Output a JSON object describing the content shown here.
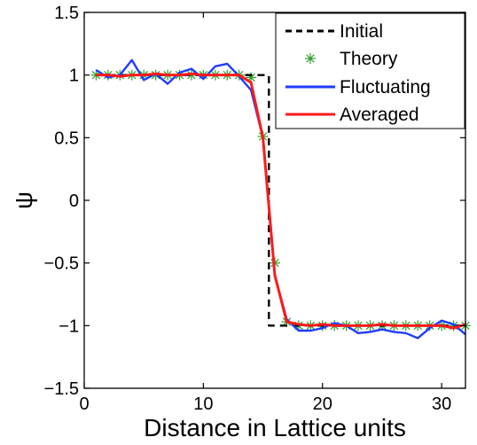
{
  "chart_data": {
    "type": "line",
    "xlabel": "Distance in Lattice units",
    "ylabel": "ψ",
    "xlim": [
      0,
      32
    ],
    "ylim": [
      -1.5,
      1.5
    ],
    "xticks": [
      0,
      10,
      20,
      30
    ],
    "yticks": [
      -1.5,
      -1,
      -0.5,
      0,
      0.5,
      1,
      1.5
    ],
    "ytick_labels": [
      "−1.5",
      "−1",
      "−0.5",
      "0",
      "0.5",
      "1",
      "1.5"
    ],
    "grid": false,
    "legend_position": "top-right",
    "series": [
      {
        "name": "Initial",
        "style": "dashed",
        "color": "#000000",
        "x": [
          1,
          15.5,
          15.5,
          32
        ],
        "y": [
          1,
          1,
          -1,
          -1
        ]
      },
      {
        "name": "Theory",
        "style": "markers",
        "marker": "asterisk",
        "color": "#2ca02c",
        "x": [
          1,
          2,
          3,
          4,
          5,
          6,
          7,
          8,
          9,
          10,
          11,
          12,
          13,
          14,
          15,
          16,
          17,
          18,
          19,
          20,
          21,
          22,
          23,
          24,
          25,
          26,
          27,
          28,
          29,
          30,
          31,
          32
        ],
        "y": [
          1,
          1,
          1,
          1,
          1,
          1,
          1,
          1,
          1,
          1,
          1,
          1,
          1,
          0.98,
          0.51,
          -0.5,
          -0.97,
          -1,
          -1,
          -1,
          -1,
          -1,
          -1,
          -1,
          -1,
          -1,
          -1,
          -1,
          -1,
          -1,
          -1,
          -1
        ]
      },
      {
        "name": "Fluctuating",
        "style": "solid",
        "color": "#1f3cff",
        "x": [
          1,
          2,
          3,
          4,
          5,
          6,
          7,
          8,
          9,
          10,
          11,
          12,
          13,
          14,
          15,
          16,
          17,
          18,
          19,
          20,
          21,
          22,
          23,
          24,
          25,
          26,
          27,
          28,
          29,
          30,
          31,
          32
        ],
        "y": [
          1.04,
          0.98,
          1.0,
          1.12,
          0.96,
          1.01,
          0.93,
          1.02,
          1.05,
          0.97,
          1.07,
          1.09,
          0.99,
          0.88,
          0.5,
          -0.6,
          -0.95,
          -1.04,
          -1.04,
          -1.02,
          -0.98,
          -1.0,
          -1.06,
          -1.05,
          -1.03,
          -1.05,
          -1.06,
          -1.1,
          -1.02,
          -0.96,
          -0.99,
          -1.07
        ]
      },
      {
        "name": "Averaged",
        "style": "solid",
        "color": "#ff1a1a",
        "x": [
          1,
          2,
          3,
          4,
          5,
          6,
          7,
          8,
          9,
          10,
          11,
          12,
          13,
          14,
          15,
          16,
          17,
          18,
          19,
          20,
          21,
          22,
          23,
          24,
          25,
          26,
          27,
          28,
          29,
          30,
          31,
          32
        ],
        "y": [
          1.0,
          1.0,
          0.99,
          1.0,
          1.0,
          1.01,
          1.0,
          1.0,
          1.01,
          1.0,
          1.0,
          1.0,
          1.0,
          0.94,
          0.5,
          -0.6,
          -0.97,
          -0.99,
          -1.0,
          -0.99,
          -1.0,
          -1.0,
          -1.0,
          -1.0,
          -0.99,
          -1.0,
          -1.0,
          -1.0,
          -1.0,
          -1.0,
          -1.02,
          -0.99
        ]
      }
    ]
  }
}
